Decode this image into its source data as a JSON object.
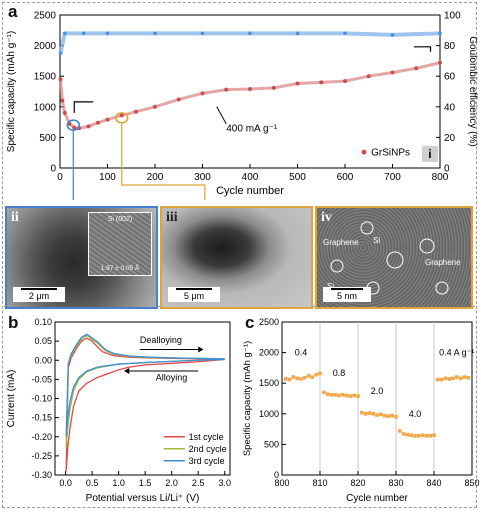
{
  "panel_labels": {
    "a": "a",
    "b": "b",
    "c": "c",
    "ii": "ii",
    "iii": "iii",
    "iv": "iv",
    "i": "i"
  },
  "chart_data": [
    {
      "type": "scatter",
      "panel": "a",
      "xlabel": "Cycle number",
      "ylabel": "Specific capacity (mAh g⁻¹)",
      "y2label": "Goulombic efficiency (%)",
      "xlim": [
        0,
        800
      ],
      "ylim": [
        0,
        2500
      ],
      "y2lim": [
        0,
        100
      ],
      "xticks": [
        "0",
        "100",
        "200",
        "300",
        "400",
        "500",
        "600",
        "700",
        "800"
      ],
      "yticks": [
        "0",
        "500",
        "1000",
        "1500",
        "2000",
        "2500"
      ],
      "y2ticks": [
        "0",
        "20",
        "40",
        "60",
        "80",
        "100"
      ],
      "legend": {
        "label": "GrSiNPs",
        "placement": "bottom-right"
      },
      "annotation": "400 mA g⁻¹",
      "capacity_series": {
        "x": [
          1,
          5,
          10,
          20,
          30,
          40,
          60,
          80,
          100,
          130,
          160,
          200,
          250,
          300,
          350,
          400,
          450,
          500,
          550,
          600,
          650,
          700,
          750,
          800
        ],
        "y": [
          1450,
          1100,
          900,
          720,
          660,
          650,
          680,
          740,
          790,
          860,
          920,
          1000,
          1120,
          1220,
          1280,
          1290,
          1310,
          1380,
          1400,
          1420,
          1500,
          1560,
          1630,
          1720
        ]
      },
      "efficiency_series": {
        "x": [
          1,
          10,
          50,
          100,
          200,
          300,
          400,
          500,
          600,
          700,
          800
        ],
        "y": [
          75,
          88,
          88,
          88,
          88,
          88,
          88,
          88,
          88,
          87,
          88
        ]
      }
    },
    {
      "type": "line",
      "panel": "b",
      "xlabel": "Potential versus Li/Li⁺ (V)",
      "ylabel": "Current (mA)",
      "xlim": [
        -0.2,
        3.1
      ],
      "ylim": [
        -0.3,
        0.1
      ],
      "xticks": [
        "0.0",
        "0.5",
        "1.0",
        "1.5",
        "2.0",
        "2.5",
        "3.0"
      ],
      "yticks": [
        "-0.30",
        "-0.25",
        "-0.20",
        "-0.15",
        "-0.10",
        "-0.05",
        "0.00",
        "0.05",
        "0.10"
      ],
      "arrow_labels": {
        "dealloying": "Dealloying",
        "alloying": "Alloying"
      },
      "series": [
        {
          "name": "1st cycle",
          "color": "#e04848",
          "x": [
            3.0,
            2.5,
            2.0,
            1.5,
            1.2,
            1.0,
            0.8,
            0.6,
            0.4,
            0.25,
            0.15,
            0.08,
            0.04,
            0.02,
            0.01,
            0.05,
            0.1,
            0.2,
            0.3,
            0.4,
            0.5,
            0.6,
            0.7,
            0.9,
            1.2,
            1.6,
            2.0,
            2.5,
            3.0
          ],
          "y": [
            0.002,
            -0.004,
            -0.008,
            -0.012,
            -0.018,
            -0.025,
            -0.035,
            -0.045,
            -0.06,
            -0.08,
            -0.12,
            -0.18,
            -0.23,
            -0.27,
            -0.29,
            -0.02,
            0.005,
            0.03,
            0.05,
            0.058,
            0.05,
            0.035,
            0.022,
            0.012,
            0.008,
            0.006,
            0.005,
            0.004,
            0.003
          ]
        },
        {
          "name": "2nd cycle",
          "color": "#a8b83c",
          "x": [
            3.0,
            2.5,
            2.0,
            1.5,
            1.0,
            0.6,
            0.4,
            0.25,
            0.15,
            0.08,
            0.04,
            0.02,
            0.01,
            0.05,
            0.1,
            0.2,
            0.3,
            0.4,
            0.5,
            0.6,
            0.75,
            0.9,
            1.2,
            1.6,
            2.0,
            2.5,
            3.0
          ],
          "y": [
            0.002,
            0.0,
            -0.003,
            -0.006,
            -0.01,
            -0.02,
            -0.03,
            -0.05,
            -0.08,
            -0.13,
            -0.18,
            -0.21,
            -0.23,
            -0.01,
            0.012,
            0.035,
            0.055,
            0.065,
            0.055,
            0.045,
            0.025,
            0.016,
            0.01,
            0.007,
            0.006,
            0.005,
            0.004
          ]
        },
        {
          "name": "3rd cycle",
          "color": "#3e8fd8",
          "x": [
            3.0,
            2.5,
            2.0,
            1.5,
            1.0,
            0.6,
            0.4,
            0.25,
            0.15,
            0.08,
            0.04,
            0.02,
            0.01,
            0.05,
            0.1,
            0.2,
            0.3,
            0.4,
            0.5,
            0.6,
            0.75,
            0.9,
            1.2,
            1.6,
            2.0,
            2.5,
            3.0
          ],
          "y": [
            0.002,
            0.0,
            -0.003,
            -0.006,
            -0.01,
            -0.018,
            -0.028,
            -0.045,
            -0.07,
            -0.11,
            -0.15,
            -0.18,
            -0.2,
            -0.01,
            0.015,
            0.04,
            0.06,
            0.068,
            0.058,
            0.048,
            0.028,
            0.018,
            0.011,
            0.008,
            0.006,
            0.005,
            0.004
          ]
        }
      ]
    },
    {
      "type": "scatter",
      "panel": "c",
      "xlabel": "Cycle number",
      "ylabel": "Specific capacity (mAh g⁻¹)",
      "xlim": [
        800,
        850
      ],
      "ylim": [
        0,
        2500
      ],
      "xticks": [
        "800",
        "810",
        "820",
        "830",
        "840",
        "850"
      ],
      "yticks": [
        "0",
        "500",
        "1000",
        "1500",
        "2000",
        "2500"
      ],
      "rate_labels": [
        "0.4",
        "0.8",
        "2.0",
        "4.0",
        "0.4 A g⁻¹"
      ],
      "color": "#f0a848",
      "x": [
        801,
        802,
        803,
        804,
        805,
        806,
        807,
        808,
        809,
        810,
        811,
        812,
        813,
        814,
        815,
        816,
        817,
        818,
        819,
        820,
        821,
        822,
        823,
        824,
        825,
        826,
        827,
        828,
        829,
        830,
        831,
        832,
        833,
        834,
        835,
        836,
        837,
        838,
        839,
        840,
        841,
        842,
        843,
        844,
        845,
        846,
        847,
        848,
        849
      ],
      "y": [
        1570,
        1560,
        1600,
        1580,
        1570,
        1590,
        1620,
        1600,
        1640,
        1660,
        1350,
        1320,
        1310,
        1310,
        1300,
        1310,
        1300,
        1290,
        1300,
        1290,
        1020,
        1000,
        1010,
        1000,
        980,
        990,
        970,
        960,
        970,
        950,
        720,
        670,
        660,
        650,
        640,
        640,
        650,
        640,
        640,
        650,
        1560,
        1560,
        1580,
        1570,
        1580,
        1600,
        1580,
        1600,
        1590
      ]
    }
  ],
  "micrographs": {
    "ii_scale": "2 μm",
    "ii_inset_label": "Si (002)",
    "ii_inset_value": "1.97 ± 0.05 Å",
    "iii_scale": "5 μm",
    "iv_scale": "5 nm",
    "iv_labels": {
      "graphene_left": "Graphene",
      "si_top": "Si",
      "si_left": "Si",
      "graphene_right": "Graphene"
    }
  }
}
